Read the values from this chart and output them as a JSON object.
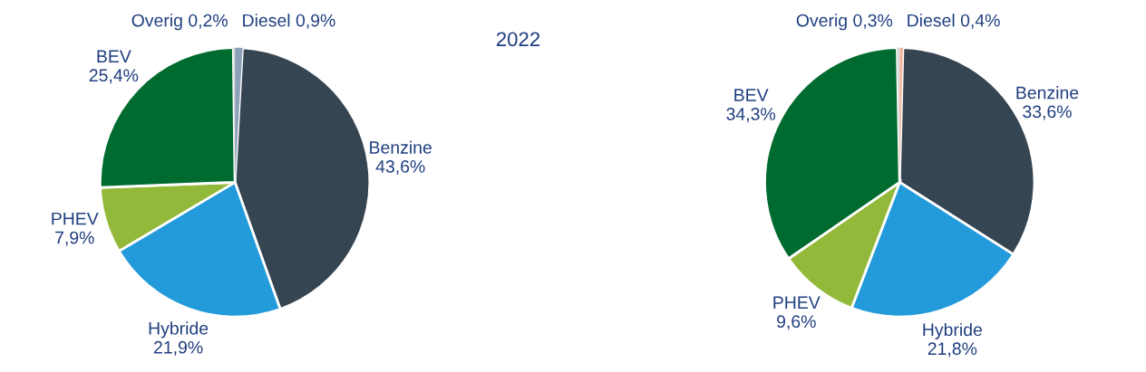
{
  "chart_data": [
    {
      "type": "pie",
      "title": "2022",
      "categories": [
        "Diesel",
        "Benzine",
        "Hybride",
        "PHEV",
        "BEV",
        "Overig"
      ],
      "values": [
        0.9,
        43.6,
        21.9,
        7.9,
        25.4,
        0.2
      ],
      "value_labels": [
        "0,9%",
        "43,6%",
        "21,9%",
        "7,9%",
        "25,4%",
        "0,2%"
      ],
      "colors": [
        "#8da2b8",
        "#364552",
        "#239bdb",
        "#93b93a",
        "#006b2f",
        "#d9d9d9"
      ]
    },
    {
      "type": "pie",
      "categories": [
        "Diesel",
        "Benzine",
        "Hybride",
        "PHEV",
        "BEV",
        "Overig"
      ],
      "values": [
        0.4,
        33.6,
        21.8,
        9.6,
        34.3,
        0.3
      ],
      "value_labels": [
        "0,4%",
        "33,6%",
        "21,8%",
        "9,6%",
        "34,3%",
        "0,3%"
      ],
      "colors": [
        "#f4b6a0",
        "#364552",
        "#239bdb",
        "#93b93a",
        "#006b2f",
        "#d9d9d9"
      ]
    }
  ]
}
